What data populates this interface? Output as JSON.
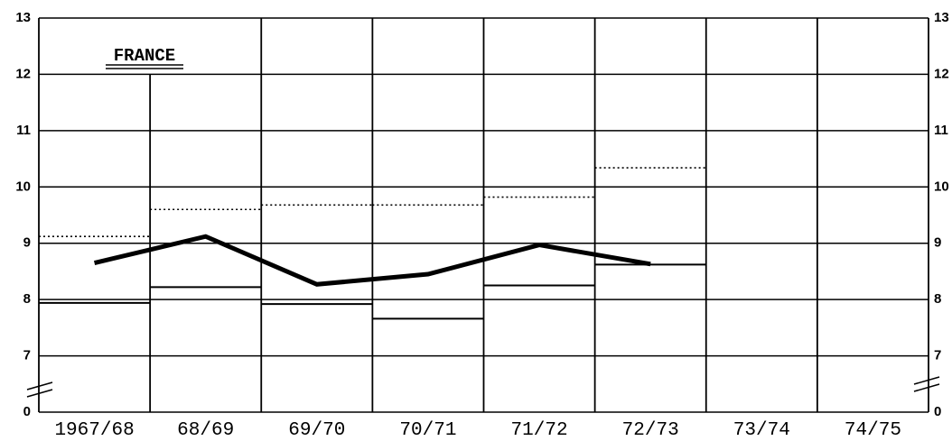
{
  "chart_data": {
    "type": "line",
    "title": "FRANCE",
    "categories": [
      "1967/68",
      "68/69",
      "69/70",
      "70/71",
      "71/72",
      "72/73",
      "73/74",
      "74/75"
    ],
    "series": [
      {
        "color": "#000000",
        "style": "thick",
        "values": [
          8.65,
          9.12,
          8.27,
          8.45,
          8.97,
          8.63,
          null,
          null
        ]
      },
      {
        "color": "#000000",
        "style": "step",
        "values": [
          7.94,
          8.22,
          7.92,
          7.66,
          8.25,
          8.62,
          null,
          null
        ]
      },
      {
        "color": "#000000",
        "style": "dotted-step",
        "values": [
          9.12,
          9.6,
          9.68,
          9.68,
          9.82,
          10.34,
          null,
          null
        ]
      }
    ],
    "ylim": [
      0,
      13
    ],
    "yticks": [
      0,
      7,
      8,
      9,
      10,
      11,
      12,
      13
    ],
    "axis_break": [
      0,
      7
    ],
    "grid": true
  }
}
